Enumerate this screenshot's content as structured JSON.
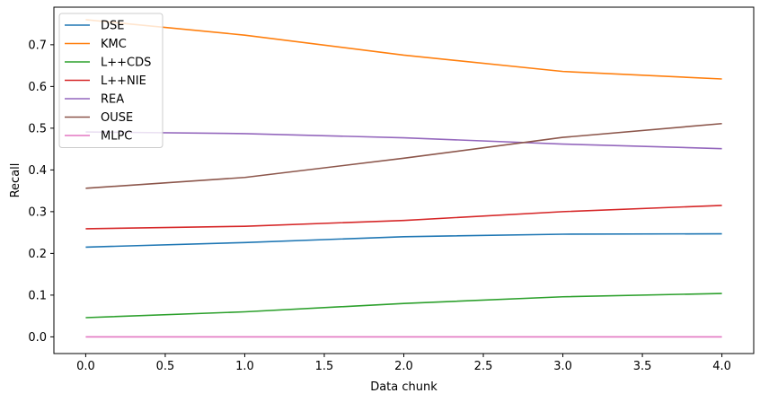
{
  "chart_data": {
    "type": "line",
    "title": "",
    "xlabel": "Data chunk",
    "ylabel": "Recall",
    "x": [
      0,
      1,
      2,
      3,
      4
    ],
    "xlim": [
      -0.2,
      4.2
    ],
    "ylim": [
      -0.04,
      0.79
    ],
    "xticks": [
      0.0,
      0.5,
      1.0,
      1.5,
      2.0,
      2.5,
      3.0,
      3.5,
      4.0
    ],
    "xtick_labels": [
      "0.0",
      "0.5",
      "1.0",
      "1.5",
      "2.0",
      "2.5",
      "3.0",
      "3.5",
      "4.0"
    ],
    "yticks": [
      0.0,
      0.1,
      0.2,
      0.3,
      0.4,
      0.5,
      0.6,
      0.7
    ],
    "ytick_labels": [
      "0.0",
      "0.1",
      "0.2",
      "0.3",
      "0.4",
      "0.5",
      "0.6",
      "0.7"
    ],
    "grid": false,
    "legend_position": "top-left",
    "series": [
      {
        "name": "DSE",
        "color": "#1f77b4",
        "values": [
          0.215,
          0.226,
          0.24,
          0.246,
          0.247
        ]
      },
      {
        "name": "KMC",
        "color": "#ff7f0e",
        "values": [
          0.76,
          0.723,
          0.675,
          0.636,
          0.618
        ]
      },
      {
        "name": "L++CDS",
        "color": "#2ca02c",
        "values": [
          0.046,
          0.06,
          0.08,
          0.096,
          0.104
        ]
      },
      {
        "name": "L++NIE",
        "color": "#d62728",
        "values": [
          0.259,
          0.265,
          0.279,
          0.3,
          0.315
        ]
      },
      {
        "name": "REA",
        "color": "#9467bd",
        "values": [
          0.491,
          0.487,
          0.477,
          0.462,
          0.451
        ]
      },
      {
        "name": "OUSE",
        "color": "#8c564b",
        "values": [
          0.356,
          0.382,
          0.428,
          0.478,
          0.511
        ]
      },
      {
        "name": "MLPC",
        "color": "#e377c2",
        "values": [
          0.0,
          0.0,
          0.0,
          0.0,
          0.0
        ]
      }
    ]
  }
}
